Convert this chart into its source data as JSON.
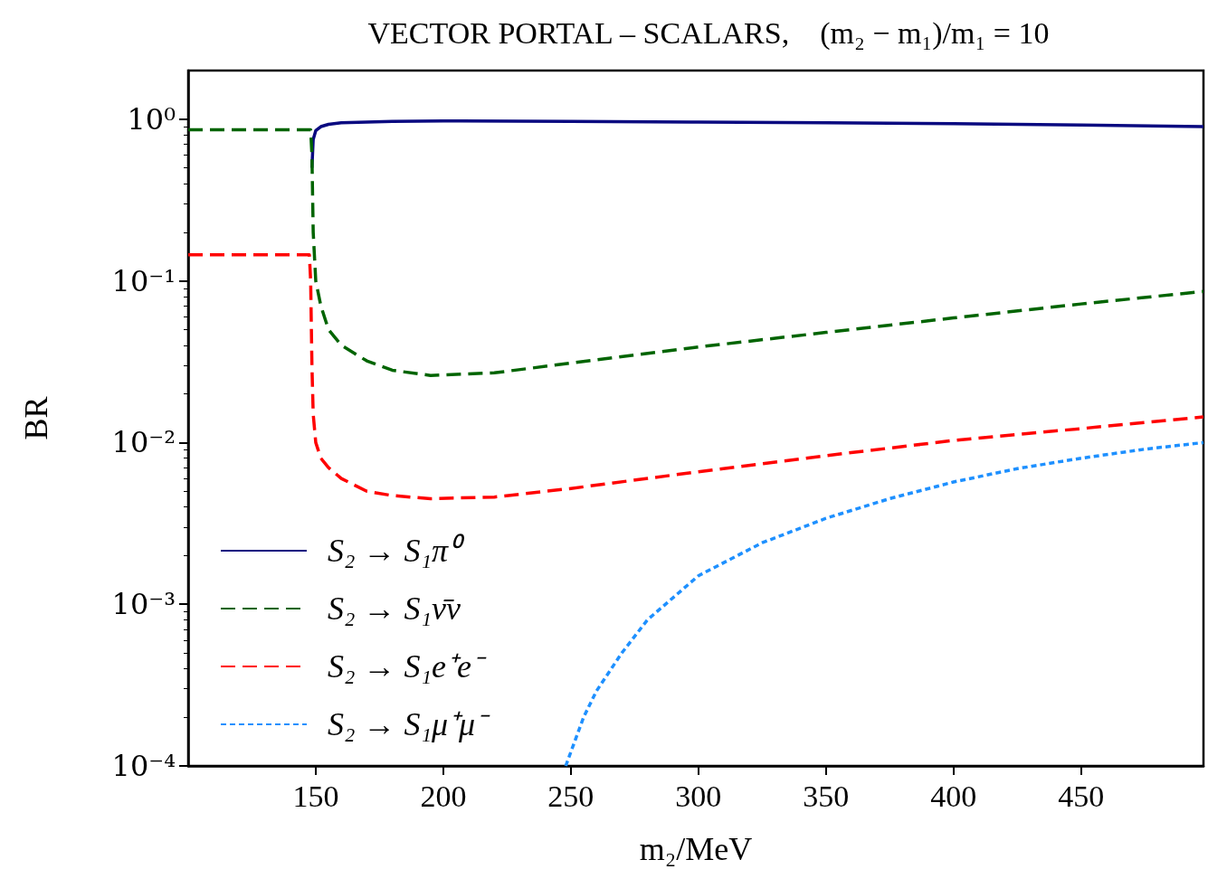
{
  "chart_data": {
    "type": "line",
    "title": "VECTOR PORTAL – SCALARS,    (m₂ − m₁)/m₁ = 10",
    "xlabel": "m₂/MeV",
    "ylabel": "BR",
    "log": "y",
    "grid": false,
    "legend": "bottom left",
    "xlim": [
      100,
      498
    ],
    "xticks": [
      150,
      200,
      250,
      300,
      350,
      400,
      450
    ],
    "ylim": [
      0.0001,
      2
    ],
    "yticks": [
      {
        "value": 0.0001,
        "label": "10⁻⁴"
      },
      {
        "value": 0.001,
        "label": "10⁻³"
      },
      {
        "value": 0.01,
        "label": "10⁻²"
      },
      {
        "value": 0.1,
        "label": "10⁻¹"
      },
      {
        "value": 1,
        "label": "10⁰"
      }
    ],
    "marker": "none",
    "series": [
      {
        "name": "S₂ → S₁π⁰",
        "color": "#0a0a80",
        "line_style": "solid",
        "x": [
          148.5,
          149,
          150,
          152,
          155,
          160,
          180,
          200,
          250,
          300,
          350,
          400,
          450,
          498
        ],
        "values": [
          0.5,
          0.75,
          0.85,
          0.9,
          0.93,
          0.95,
          0.97,
          0.975,
          0.97,
          0.96,
          0.95,
          0.94,
          0.92,
          0.9
        ]
      },
      {
        "name": "S₂ → S₁ν̄ν",
        "color": "#006400",
        "line_style": "dashed",
        "x": [
          100,
          148,
          148.5,
          149,
          150,
          152,
          155,
          160,
          170,
          180,
          195,
          220,
          250,
          300,
          350,
          400,
          450,
          498
        ],
        "values": [
          0.86,
          0.86,
          0.6,
          0.2,
          0.1,
          0.07,
          0.05,
          0.04,
          0.032,
          0.028,
          0.026,
          0.027,
          0.031,
          0.039,
          0.048,
          0.059,
          0.072,
          0.086
        ]
      },
      {
        "name": "S₂ → S₁e⁺e⁻",
        "color": "#ff0000",
        "line_style": "dashed",
        "x": [
          100,
          147.5,
          148,
          148.5,
          149,
          150,
          152,
          155,
          160,
          170,
          180,
          195,
          220,
          250,
          300,
          350,
          400,
          450,
          498
        ],
        "values": [
          0.145,
          0.145,
          0.1,
          0.03,
          0.015,
          0.01,
          0.008,
          0.007,
          0.006,
          0.005,
          0.0047,
          0.0045,
          0.0046,
          0.0052,
          0.0066,
          0.0083,
          0.0103,
          0.0122,
          0.0144
        ]
      },
      {
        "name": "S₂ → S₁μ⁺μ⁻",
        "color": "#1e90ff",
        "line_style": "dotted",
        "x": [
          248,
          255,
          260,
          270,
          280,
          300,
          325,
          350,
          375,
          400,
          425,
          450,
          475,
          498
        ],
        "values": [
          0.0001,
          0.0002,
          0.00029,
          0.0005,
          0.0008,
          0.0015,
          0.0024,
          0.0034,
          0.0045,
          0.0057,
          0.0069,
          0.008,
          0.0091,
          0.01
        ]
      }
    ]
  }
}
